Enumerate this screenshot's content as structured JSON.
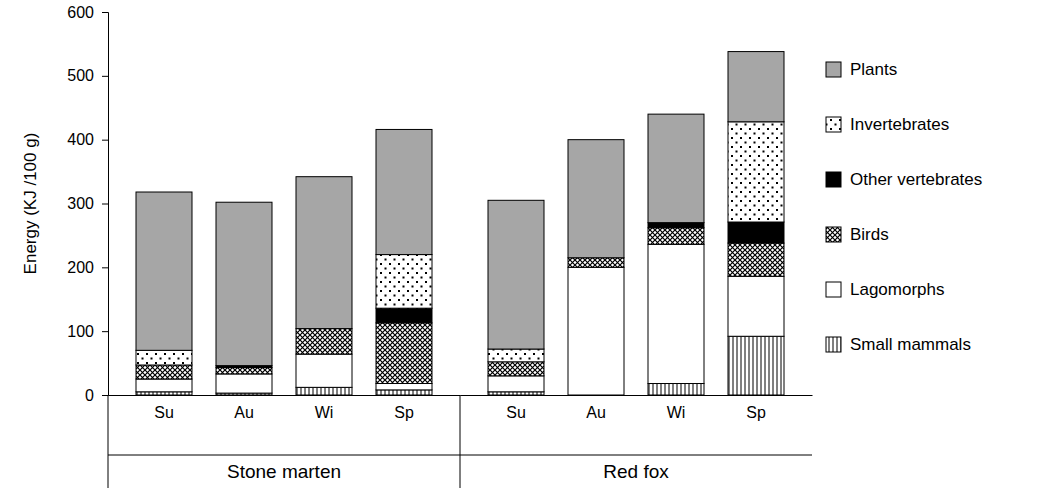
{
  "chart_data": {
    "type": "bar",
    "stacked": true,
    "grid": false,
    "legend": "right",
    "ylabel": "Energy  (KJ /100 g)",
    "categories": [
      "Su",
      "Au",
      "Wi",
      "Sp",
      "Su",
      "Au",
      "Wi",
      "Sp"
    ],
    "groups": [
      "Stone marten",
      "Red fox"
    ],
    "ylim": [
      0,
      600
    ],
    "yticks": [
      0,
      100,
      200,
      300,
      400,
      500,
      600
    ],
    "series": [
      {
        "name": "Small mammals",
        "color": "#ffffff",
        "values": [
          5,
          3,
          12,
          8,
          5,
          0,
          18,
          92
        ]
      },
      {
        "name": "Lagomorphs",
        "color": "#ffffff",
        "values": [
          20,
          30,
          52,
          10,
          25,
          200,
          218,
          94
        ]
      },
      {
        "name": "Birds",
        "color": "#ffffff",
        "values": [
          22,
          10,
          40,
          95,
          22,
          15,
          26,
          52
        ]
      },
      {
        "name": "Other vertebrates",
        "color": "#000000",
        "values": [
          0,
          3,
          0,
          23,
          0,
          0,
          8,
          33
        ]
      },
      {
        "name": "Invertebrates",
        "color": "#ffffff",
        "values": [
          23,
          0,
          0,
          84,
          20,
          0,
          0,
          157
        ]
      },
      {
        "name": "Plants",
        "color": "#a6a6a6",
        "values": [
          248,
          256,
          238,
          196,
          233,
          185,
          170,
          110
        ]
      }
    ]
  }
}
